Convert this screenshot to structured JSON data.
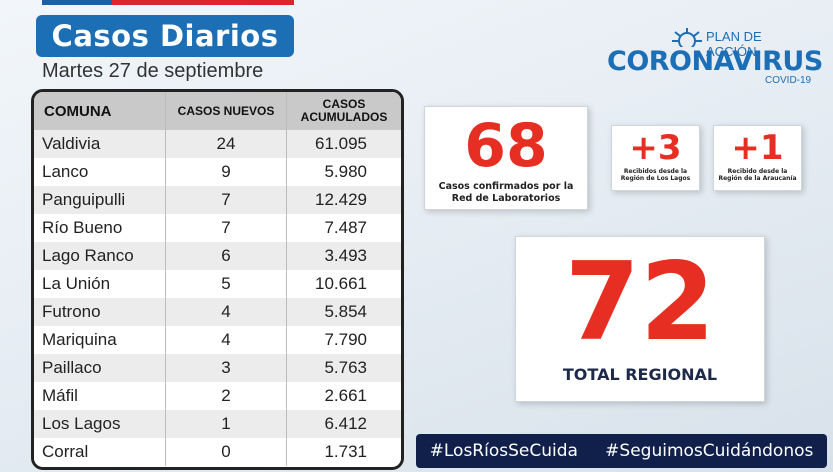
{
  "title": "Casos Diarios",
  "date": "Martes 27 de septiembre",
  "logo": {
    "plan_label": "PLAN DE ACCIÓN",
    "name": "CORONAVIRUS",
    "sub": "COVID-19"
  },
  "table": {
    "headers": [
      "COMUNA",
      "CASOS NUEVOS",
      "CASOS ACUMULADOS"
    ],
    "rows": [
      [
        "Valdivia",
        "24",
        "61.095"
      ],
      [
        "Lanco",
        "9",
        "5.980"
      ],
      [
        "Panguipulli",
        "7",
        "12.429"
      ],
      [
        "Río Bueno",
        "7",
        "7.487"
      ],
      [
        "Lago Ranco",
        "6",
        "3.493"
      ],
      [
        "La Unión",
        "5",
        "10.661"
      ],
      [
        "Futrono",
        "4",
        "5.854"
      ],
      [
        "Mariquina",
        "4",
        "7.790"
      ],
      [
        "Paillaco",
        "3",
        "5.763"
      ],
      [
        "Máfil",
        "2",
        "2.661"
      ],
      [
        "Los Lagos",
        "1",
        "6.412"
      ],
      [
        "Corral",
        "0",
        "1.731"
      ]
    ]
  },
  "stats": {
    "confirmed": {
      "value": "68",
      "label": "Casos confirmados por la Red de Laboratorios"
    },
    "los_lagos": {
      "value": "+3",
      "label": "Recibidos desde la Región de Los Lagos"
    },
    "araucania": {
      "value": "+1",
      "label": "Recibido desde la Región de la Araucanía"
    },
    "total": {
      "value": "72",
      "label": "TOTAL REGIONAL"
    }
  },
  "hashtags": [
    "#LosRíosSeCuida",
    "#SeguimosCuidándonos"
  ],
  "colors": {
    "brand_blue": "#1d6fb5",
    "accent_red": "#e62e22",
    "navy": "#10204a"
  }
}
